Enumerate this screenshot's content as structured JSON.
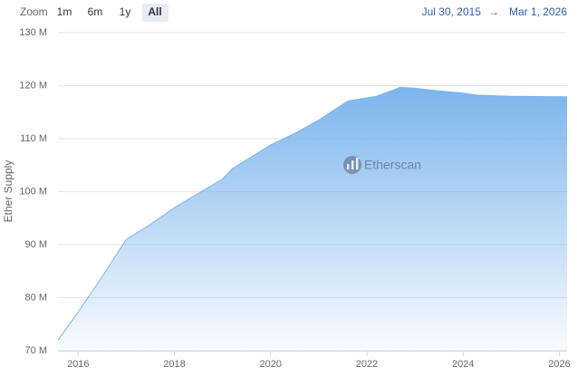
{
  "chart_data": {
    "type": "area",
    "y_axis_label": "Ether Supply",
    "watermark": "Etherscan",
    "range_selector": {
      "label": "Zoom",
      "buttons": [
        "1m",
        "6m",
        "1y",
        "All"
      ],
      "selected": 3,
      "from": "Jul 30, 2015",
      "separator": "→",
      "to": "Mar 1, 2026"
    },
    "x": [
      2015.58,
      2016.0,
      2016.5,
      2017.0,
      2017.5,
      2018.0,
      2018.5,
      2019.0,
      2019.2,
      2020.0,
      2020.5,
      2021.0,
      2021.6,
      2022.0,
      2022.2,
      2022.7,
      2023.0,
      2023.5,
      2024.0,
      2024.3,
      2025.0,
      2026.16
    ],
    "values": [
      72000000,
      77300000,
      84000000,
      91000000,
      93800000,
      97000000,
      99700000,
      102400000,
      104300000,
      108800000,
      111000000,
      113500000,
      117100000,
      117700000,
      118000000,
      119700000,
      119500000,
      119000000,
      118600000,
      118200000,
      118000000,
      117900000
    ],
    "color": "#7cb5ec",
    "xlim": [
      2015.58,
      2026.16
    ],
    "xticks": [
      2016,
      2018,
      2020,
      2022,
      2024,
      2026
    ],
    "ylim": [
      70000000,
      130000000
    ],
    "yticks": [
      {
        "value": 70000000,
        "label": "70 M"
      },
      {
        "value": 80000000,
        "label": "80 M"
      },
      {
        "value": 90000000,
        "label": "90 M"
      },
      {
        "value": 100000000,
        "label": "100 M"
      },
      {
        "value": 110000000,
        "label": "110 M"
      },
      {
        "value": 120000000,
        "label": "120 M"
      },
      {
        "value": 130000000,
        "label": "130 M"
      }
    ],
    "grid": true
  }
}
